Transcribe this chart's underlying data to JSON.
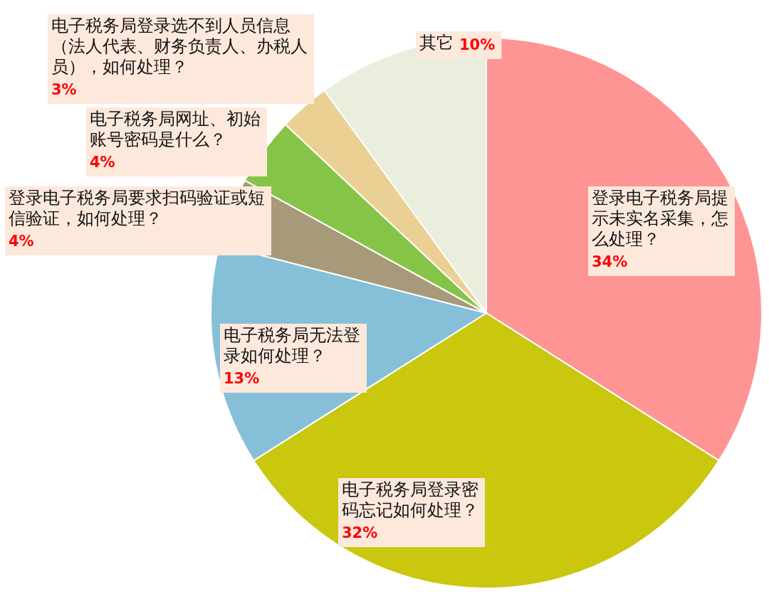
{
  "chart_data": {
    "type": "pie",
    "categories": [
      "登录电子税务局提示未实名采集，怎么处理？",
      "电子税务局登录密码忘记如何处理？",
      "电子税务局无法登录如何处理？",
      "登录电子税务局要求扫码验证或短信验证，如何处理？",
      "电子税务局网址、初始账号密码是什么？",
      "电子税务局登录选不到人员信息（法人代表、财务负责人、办税人员），如何处理？",
      "其它"
    ],
    "values": [
      34,
      32,
      13,
      4,
      4,
      3,
      10
    ],
    "value_labels": [
      "34%",
      "32%",
      "13%",
      "4%",
      "4%",
      "3%",
      "10%"
    ],
    "colors": [
      "#fe9494",
      "#c9c70e",
      "#86c0d8",
      "#a69a7a",
      "#86c448",
      "#ead092",
      "#eaeedc"
    ]
  }
}
